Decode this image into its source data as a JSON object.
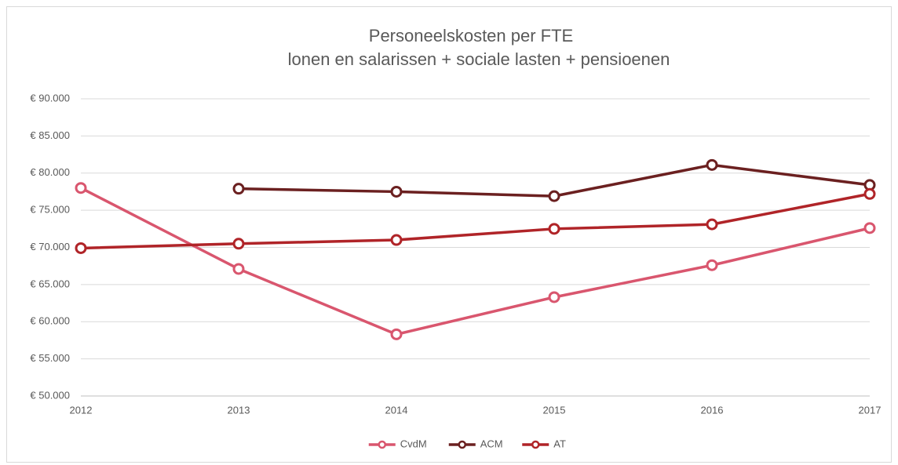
{
  "chart_data": {
    "type": "line",
    "title": "Personeelskosten per FTE",
    "subtitle": "lonen en salarissen + sociale lasten + pensioenen",
    "x": [
      2012,
      2013,
      2014,
      2015,
      2016,
      2017
    ],
    "xlim": [
      2012,
      2017
    ],
    "xticks": [
      2012,
      2013,
      2014,
      2015,
      2016,
      2017
    ],
    "ylim": [
      50000,
      90000
    ],
    "yticks": [
      {
        "value": 50000,
        "label": "€ 50.000"
      },
      {
        "value": 55000,
        "label": "€ 55.000"
      },
      {
        "value": 60000,
        "label": "€ 60.000"
      },
      {
        "value": 65000,
        "label": "€ 65.000"
      },
      {
        "value": 70000,
        "label": "€ 70.000"
      },
      {
        "value": 75000,
        "label": "€ 75.000"
      },
      {
        "value": 80000,
        "label": "€ 80.000"
      },
      {
        "value": 85000,
        "label": "€ 85.000"
      },
      {
        "value": 90000,
        "label": "€ 90.000"
      }
    ],
    "grid": true,
    "legend": "bottom",
    "series": [
      {
        "name": "CvdM",
        "color": "#d9566e",
        "values": [
          78000,
          67100,
          58300,
          63300,
          67600,
          72600
        ]
      },
      {
        "name": "ACM",
        "color": "#6b2020",
        "values": [
          null,
          77900,
          77500,
          76900,
          81100,
          78400
        ]
      },
      {
        "name": "AT",
        "color": "#b02428",
        "values": [
          69900,
          70500,
          71000,
          72500,
          73100,
          77200
        ]
      }
    ]
  }
}
